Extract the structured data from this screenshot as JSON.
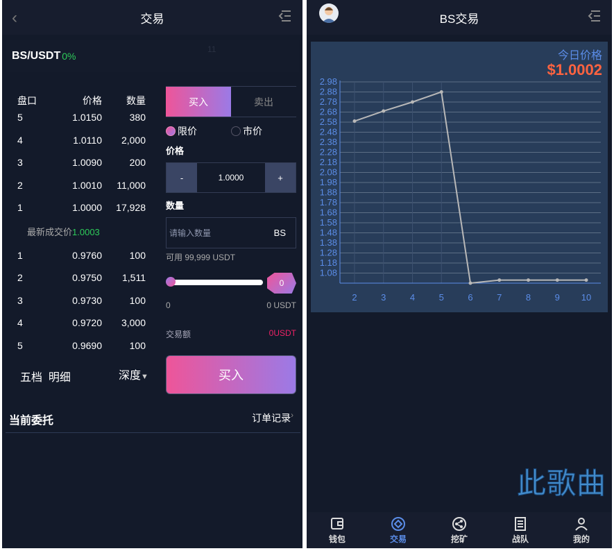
{
  "left": {
    "header": {
      "title": "交易"
    },
    "pair": {
      "name": "BS/USDT",
      "change": "0%",
      "ghost": "11"
    },
    "book": {
      "headers": [
        "盘口",
        "价格",
        "数量"
      ],
      "asks": [
        [
          "5",
          "1.0150",
          "380"
        ],
        [
          "4",
          "1.0110",
          "2,000"
        ],
        [
          "3",
          "1.0090",
          "200"
        ],
        [
          "2",
          "1.0010",
          "11,000"
        ],
        [
          "1",
          "1.0000",
          "17,928"
        ]
      ],
      "latest_label": "最新成交价",
      "latest_value": "1.0003",
      "bids": [
        [
          "1",
          "0.9760",
          "100"
        ],
        [
          "2",
          "0.9750",
          "1,511"
        ],
        [
          "3",
          "0.9730",
          "100"
        ],
        [
          "4",
          "0.9720",
          "3,000"
        ],
        [
          "5",
          "0.9690",
          "100"
        ]
      ],
      "tab_five": "五档",
      "tab_detail": "明细",
      "depth": "深度"
    },
    "form": {
      "buy_tab": "买入",
      "sell_tab": "卖出",
      "limit": "限价",
      "market": "市价",
      "price_label": "价格",
      "minus": "-",
      "price": "1.0000",
      "plus": "+",
      "qty_label": "数量",
      "qty_placeholder": "请输入数量",
      "qty_unit": "BS",
      "available": "可用 99,999 USDT",
      "slider_value": "0",
      "slider_fraction": 0,
      "range_min": "0",
      "range_max": "0 USDT",
      "amount_label": "交易额",
      "amount_value": "0USDT",
      "submit": "买入"
    },
    "orders": {
      "title": "当前委托",
      "history": "订单记录"
    }
  },
  "right": {
    "header": {
      "title": "BS交易"
    },
    "price_label": "今日价格",
    "price_value": "$1.0002",
    "nav": [
      {
        "label": "钱包",
        "icon": "wallet-icon"
      },
      {
        "label": "交易",
        "icon": "trade-icon",
        "active": true
      },
      {
        "label": "挖矿",
        "icon": "share-icon"
      },
      {
        "label": "战队",
        "icon": "list-icon"
      },
      {
        "label": "我的",
        "icon": "user-icon"
      }
    ],
    "watermark": "此歌曲"
  },
  "colors": {
    "accent": "#5b8de8",
    "price": "#ff6340",
    "up": "#2ecc5a",
    "buy_start": "#ee5599",
    "buy_end": "#9b7ae6"
  },
  "chart_data": {
    "type": "line",
    "x": [
      2,
      3,
      4,
      5,
      6,
      7,
      8,
      9,
      10
    ],
    "values": [
      2.59,
      2.69,
      2.78,
      2.88,
      0.98,
      1.01,
      1.01,
      1.01,
      1.01
    ],
    "yticks": [
      "2.98",
      "2.88",
      "2.78",
      "2.68",
      "2.58",
      "2.48",
      "2.38",
      "2.28",
      "2.18",
      "2.08",
      "1.98",
      "1.88",
      "1.78",
      "1.68",
      "1.58",
      "1.48",
      "1.38",
      "1.28",
      "1.18",
      "1.08"
    ],
    "ylim": [
      0.98,
      2.98
    ],
    "grid": true
  }
}
